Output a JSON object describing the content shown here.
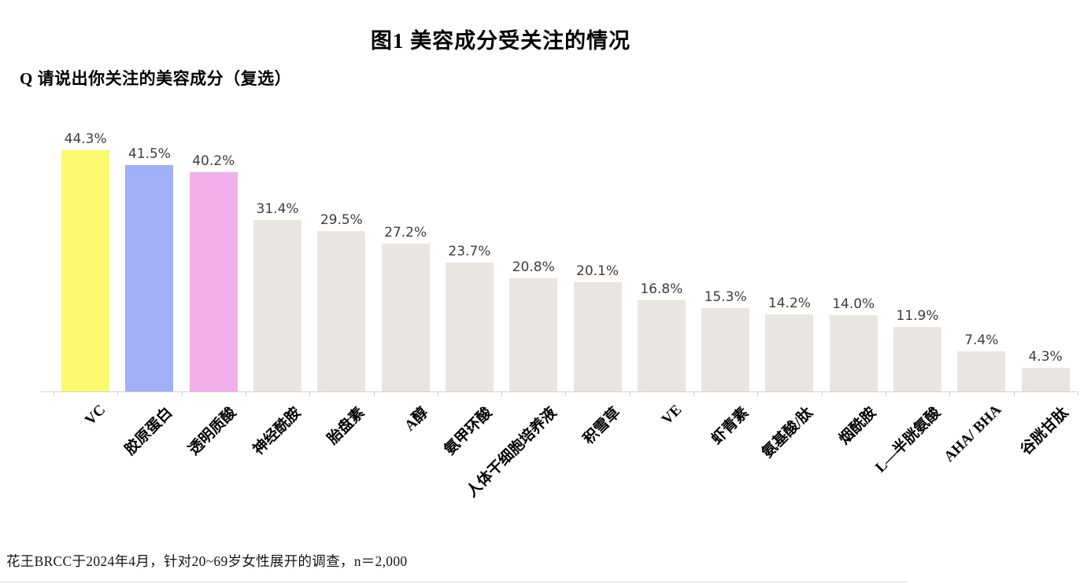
{
  "page": {
    "title": "图1  美容成分受关注的情况",
    "question": "Q 请说出你关注的美容成分（复选）",
    "footnote": "花王BRCC于2024年4月，针对20~69岁女性展开的调查，n＝2,000"
  },
  "colors": {
    "highlight_yellow": "#FBF96C",
    "highlight_blue": "#A0AFF8",
    "highlight_pink": "#F2AEE8",
    "bar_default": "#E9E5E0",
    "axis": "#D3D0CD",
    "value_label": "#3D3D3D"
  },
  "chart_data": {
    "type": "bar",
    "title": "图1 美容成分受关注的情况",
    "xlabel": "",
    "ylabel": "",
    "ylim": [
      0,
      46
    ],
    "grid": false,
    "legend_position": "none",
    "value_suffix": "%",
    "categories": [
      "VC",
      "胶原蛋白",
      "透明质酸",
      "神经酰胺",
      "胎盘素",
      "A醇",
      "氨甲环酸",
      "人体干细胞培养液",
      "积雪草",
      "VE",
      "虾青素",
      "氨基酸/肽",
      "烟酰胺",
      "L—半胱氨酸",
      "AHA/ BHA",
      "谷胱甘肽"
    ],
    "values": [
      44.3,
      41.5,
      40.2,
      31.4,
      29.5,
      27.2,
      23.7,
      20.8,
      20.1,
      16.8,
      15.3,
      14.2,
      14.0,
      11.9,
      7.4,
      4.3
    ],
    "value_labels": [
      "44.3%",
      "41.5%",
      "40.2%",
      "31.4%",
      "29.5%",
      "27.2%",
      "23.7%",
      "20.8%",
      "20.1%",
      "16.8%",
      "15.3%",
      "14.2%",
      "14.0%",
      "11.9%",
      "7.4%",
      "4.3%"
    ],
    "bar_colors": [
      "#FBF96C",
      "#A0AFF8",
      "#F2AEE8",
      null,
      null,
      null,
      null,
      null,
      null,
      null,
      null,
      null,
      null,
      null,
      null,
      null
    ]
  }
}
